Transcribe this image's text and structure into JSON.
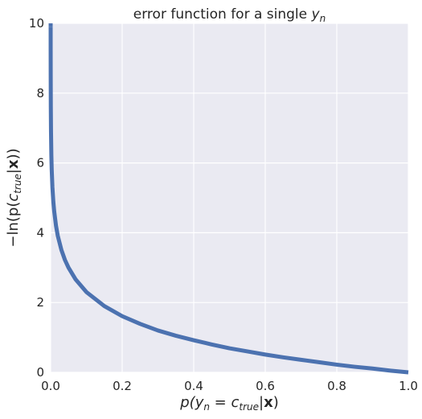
{
  "chart_data": {
    "type": "line",
    "title": {
      "pre": "error function for a single ",
      "math_main": "y",
      "math_sub": "n"
    },
    "xlabel": {
      "p": "p(",
      "y": "y",
      "y_sub": "n",
      "eq": " = ",
      "c": "c",
      "c_sub": "true",
      "bar": "|",
      "x": "x",
      "close": ")"
    },
    "ylabel": {
      "pre": "−ln(p(",
      "c": "c",
      "c_sub": "true",
      "bar": "|",
      "x": "x",
      "close": "))"
    },
    "xlim": [
      0.0,
      1.0
    ],
    "ylim": [
      0,
      10
    ],
    "x_ticks": [
      0.0,
      0.2,
      0.4,
      0.6,
      0.8,
      1.0
    ],
    "x_tick_labels": [
      "0.0",
      "0.2",
      "0.4",
      "0.6",
      "0.8",
      "1.0"
    ],
    "y_ticks": [
      0,
      2,
      4,
      6,
      8,
      10
    ],
    "y_tick_labels": [
      "0",
      "2",
      "4",
      "6",
      "8",
      "10"
    ],
    "grid": true,
    "background": "#EAEAF2",
    "grid_color": "#FFFFFF",
    "line_color": "#4C72B0",
    "series": [
      {
        "x": [
          5e-05,
          0.0001,
          0.0002,
          0.0005,
          0.001,
          0.002,
          0.003,
          0.005,
          0.0075,
          0.01,
          0.015,
          0.02,
          0.03,
          0.04,
          0.05,
          0.07,
          0.1,
          0.15,
          0.2,
          0.25,
          0.3,
          0.35,
          0.4,
          0.45,
          0.5,
          0.55,
          0.6,
          0.65,
          0.7,
          0.75,
          0.8,
          0.85,
          0.9,
          0.95,
          1.0
        ],
        "y": [
          9.9,
          9.21,
          8.52,
          7.6,
          6.91,
          6.21,
          5.81,
          5.3,
          4.89,
          4.61,
          4.2,
          3.91,
          3.51,
          3.22,
          3.0,
          2.66,
          2.3,
          1.9,
          1.61,
          1.39,
          1.2,
          1.05,
          0.92,
          0.8,
          0.69,
          0.6,
          0.51,
          0.43,
          0.36,
          0.29,
          0.22,
          0.16,
          0.11,
          0.05,
          0.0
        ]
      }
    ]
  }
}
